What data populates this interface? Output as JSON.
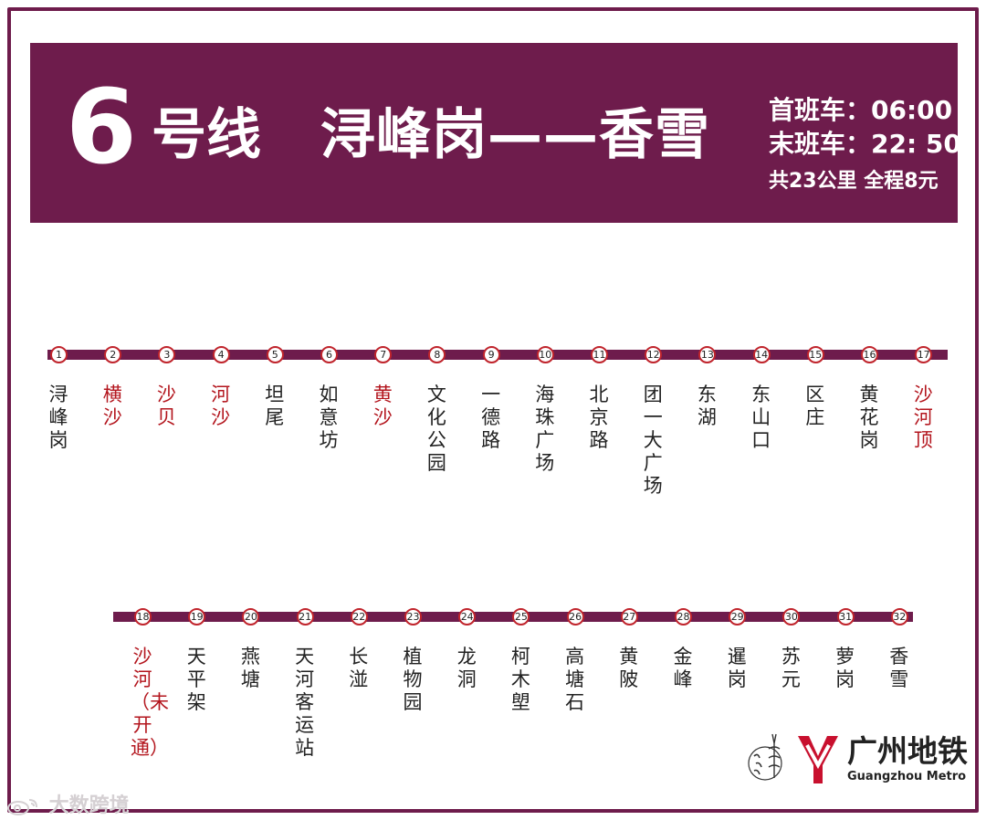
{
  "header": {
    "line_number": "6",
    "line_word": "号线",
    "route": "浔峰岗——香雪",
    "first_train": "首班车：06:00",
    "last_train": "末班车：22: 50",
    "length_fare": "共23公里 全程8元"
  },
  "colors": {
    "line": "#6e1c4c",
    "station_ring": "#c0242c",
    "highlight_text": "#b3151d",
    "logo_red": "#c8102e"
  },
  "stations_row1": [
    {
      "no": "1",
      "name": "浔峰岗",
      "highlight": false
    },
    {
      "no": "2",
      "name": "横沙",
      "highlight": true
    },
    {
      "no": "3",
      "name": "沙贝",
      "highlight": true
    },
    {
      "no": "4",
      "name": "河沙",
      "highlight": true
    },
    {
      "no": "5",
      "name": "坦尾",
      "highlight": false
    },
    {
      "no": "6",
      "name": "如意坊",
      "highlight": false
    },
    {
      "no": "7",
      "name": "黄沙",
      "highlight": true
    },
    {
      "no": "8",
      "name": "文化公园",
      "highlight": false
    },
    {
      "no": "9",
      "name": "一德路",
      "highlight": false
    },
    {
      "no": "10",
      "name": "海珠广场",
      "highlight": false
    },
    {
      "no": "11",
      "name": "北京路",
      "highlight": false
    },
    {
      "no": "12",
      "name": "团一大广场",
      "highlight": false
    },
    {
      "no": "13",
      "name": "东湖",
      "highlight": false
    },
    {
      "no": "14",
      "name": "东山口",
      "highlight": false
    },
    {
      "no": "15",
      "name": "区庄",
      "highlight": false
    },
    {
      "no": "16",
      "name": "黄花岗",
      "highlight": false
    },
    {
      "no": "17",
      "name": "沙河顶",
      "highlight": true
    }
  ],
  "stations_row2": [
    {
      "no": "18",
      "name": "沙河（未开通）",
      "highlight": true
    },
    {
      "no": "19",
      "name": "天平架",
      "highlight": false
    },
    {
      "no": "20",
      "name": "燕塘",
      "highlight": false
    },
    {
      "no": "21",
      "name": "天河客运站",
      "highlight": false
    },
    {
      "no": "22",
      "name": "长湴",
      "highlight": false
    },
    {
      "no": "23",
      "name": "植物园",
      "highlight": false
    },
    {
      "no": "24",
      "name": "龙洞",
      "highlight": false
    },
    {
      "no": "25",
      "name": "柯木塱",
      "highlight": false
    },
    {
      "no": "26",
      "name": "高塘石",
      "highlight": false
    },
    {
      "no": "27",
      "name": "黄陂",
      "highlight": false
    },
    {
      "no": "28",
      "name": "金峰",
      "highlight": false
    },
    {
      "no": "29",
      "name": "暹岗",
      "highlight": false
    },
    {
      "no": "30",
      "name": "苏元",
      "highlight": false
    },
    {
      "no": "31",
      "name": "萝岗",
      "highlight": false
    },
    {
      "no": "32",
      "name": "香雪",
      "highlight": false
    }
  ],
  "logo": {
    "name_cn": "广州地铁",
    "name_en": "Guangzhou Metro",
    "seal_icon": "guangzhou-seal-icon",
    "metro_icon": "guangzhou-metro-y-icon"
  },
  "watermark": {
    "text": "大数跨境",
    "icon": "weibo-icon"
  }
}
